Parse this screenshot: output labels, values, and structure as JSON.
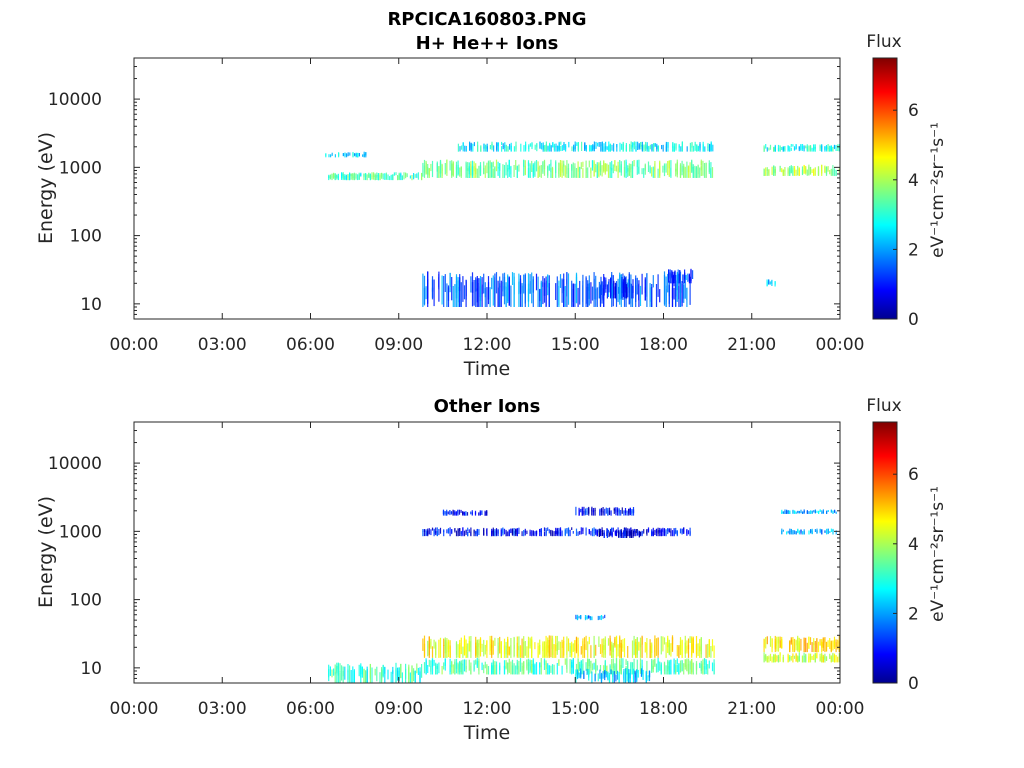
{
  "figure": {
    "file_title": "RPCICA160803.PNG"
  },
  "chart_data": [
    {
      "type": "heatmap",
      "title": "H+ He++ Ions",
      "xlabel": "Time",
      "ylabel": "Energy (eV)",
      "y_scale": "log",
      "ylim": [
        6,
        40000
      ],
      "xlim_hours": [
        0,
        24
      ],
      "x_ticks": [
        "00:00",
        "03:00",
        "06:00",
        "09:00",
        "12:00",
        "15:00",
        "18:00",
        "21:00",
        "00:00"
      ],
      "y_ticks": [
        "10",
        "100",
        "1000",
        "10000"
      ],
      "colorbar": {
        "title": "Flux",
        "unit": "eV⁻¹cm⁻²sr⁻¹s⁻¹",
        "ticks": [
          "0",
          "2",
          "4",
          "6"
        ],
        "range": [
          0,
          7.5
        ]
      },
      "bands": [
        {
          "t0": 6.6,
          "t1": 9.8,
          "e0": 650,
          "e1": 850,
          "v": 3.3
        },
        {
          "t0": 9.8,
          "t1": 19.7,
          "e0": 700,
          "e1": 1300,
          "v": 3.6
        },
        {
          "t0": 10.9,
          "t1": 19.7,
          "e0": 1700,
          "e1": 2400,
          "v": 2.7
        },
        {
          "t0": 21.4,
          "t1": 24.0,
          "e0": 750,
          "e1": 1100,
          "v": 4.0
        },
        {
          "t0": 21.4,
          "t1": 24.0,
          "e0": 1700,
          "e1": 2200,
          "v": 2.9
        },
        {
          "t0": 9.8,
          "t1": 18.9,
          "e0": 9,
          "e1": 30,
          "v": 1.7
        },
        {
          "t0": 15.8,
          "t1": 17.0,
          "e0": 12,
          "e1": 25,
          "v": 1.4
        },
        {
          "t0": 18.1,
          "t1": 19.0,
          "e0": 20,
          "e1": 33,
          "v": 1.6
        },
        {
          "t0": 6.5,
          "t1": 8.0,
          "e0": 1400,
          "e1": 1700,
          "v": 2.6
        },
        {
          "t0": 21.5,
          "t1": 21.8,
          "e0": 18,
          "e1": 23,
          "v": 2.5
        }
      ]
    },
    {
      "type": "heatmap",
      "title": "Other Ions",
      "xlabel": "Time",
      "ylabel": "Energy (eV)",
      "y_scale": "log",
      "ylim": [
        6,
        40000
      ],
      "xlim_hours": [
        0,
        24
      ],
      "x_ticks": [
        "00:00",
        "03:00",
        "06:00",
        "09:00",
        "12:00",
        "15:00",
        "18:00",
        "21:00",
        "00:00"
      ],
      "y_ticks": [
        "10",
        "100",
        "1000",
        "10000"
      ],
      "colorbar": {
        "title": "Flux",
        "unit": "eV⁻¹cm⁻²sr⁻¹s⁻¹",
        "ticks": [
          "0",
          "2",
          "4",
          "6"
        ],
        "range": [
          0,
          7.5
        ]
      },
      "bands": [
        {
          "t0": 9.8,
          "t1": 19.7,
          "e0": 14,
          "e1": 30,
          "v": 4.6
        },
        {
          "t0": 9.8,
          "t1": 19.7,
          "e0": 8,
          "e1": 14,
          "v": 3.4
        },
        {
          "t0": 15.0,
          "t1": 17.6,
          "e0": 6,
          "e1": 10,
          "v": 2.4
        },
        {
          "t0": 6.6,
          "t1": 9.8,
          "e0": 6,
          "e1": 12,
          "v": 3.2
        },
        {
          "t0": 21.4,
          "t1": 24.0,
          "e0": 17,
          "e1": 30,
          "v": 4.9
        },
        {
          "t0": 21.4,
          "t1": 24.0,
          "e0": 12,
          "e1": 17,
          "v": 4.3
        },
        {
          "t0": 9.8,
          "t1": 18.9,
          "e0": 850,
          "e1": 1150,
          "v": 1.0
        },
        {
          "t0": 15.0,
          "t1": 17.0,
          "e0": 1700,
          "e1": 2300,
          "v": 0.9
        },
        {
          "t0": 15.8,
          "t1": 17.2,
          "e0": 800,
          "e1": 1100,
          "v": 0.7
        },
        {
          "t0": 15.0,
          "t1": 16.0,
          "e0": 50,
          "e1": 60,
          "v": 2.0
        },
        {
          "t0": 22.0,
          "t1": 23.9,
          "e0": 1800,
          "e1": 2100,
          "v": 2.3
        },
        {
          "t0": 22.0,
          "t1": 23.9,
          "e0": 900,
          "e1": 1100,
          "v": 2.2
        },
        {
          "t0": 10.5,
          "t1": 12.0,
          "e0": 1700,
          "e1": 2100,
          "v": 1.0
        }
      ]
    }
  ]
}
